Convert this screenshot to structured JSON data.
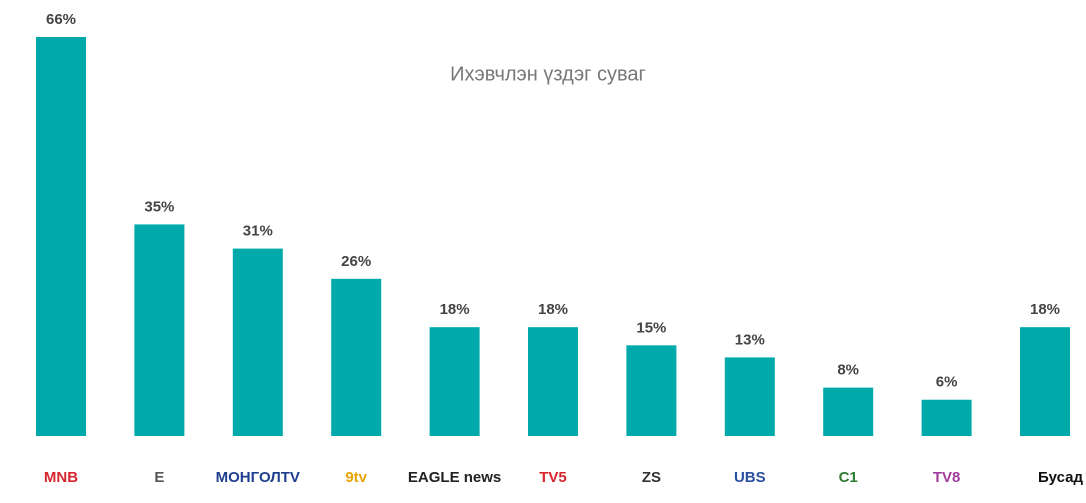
{
  "chart_data": {
    "type": "bar",
    "title": "Ихэвчлэн үздэг суваг",
    "categories": [
      "MNB",
      "E",
      "МОНГОЛTV",
      "9tv",
      "EAGLE news",
      "TV5",
      "ZS",
      "UBS",
      "C1",
      "TV8",
      "Бусад"
    ],
    "category_colors": [
      "#d7262e",
      "#555555",
      "#1f3f8f",
      "#e6a400",
      "#222222",
      "#d7262e",
      "#333333",
      "#2a4fa0",
      "#2f7d32",
      "#a03c9c",
      "#111111"
    ],
    "values": [
      66,
      35,
      31,
      26,
      18,
      18,
      15,
      13,
      8,
      6,
      18
    ],
    "value_labels": [
      "66%",
      "35%",
      "31%",
      "26%",
      "18%",
      "18%",
      "15%",
      "13%",
      "8%",
      "6%",
      "18%"
    ],
    "color": "#00aaaa"
  }
}
